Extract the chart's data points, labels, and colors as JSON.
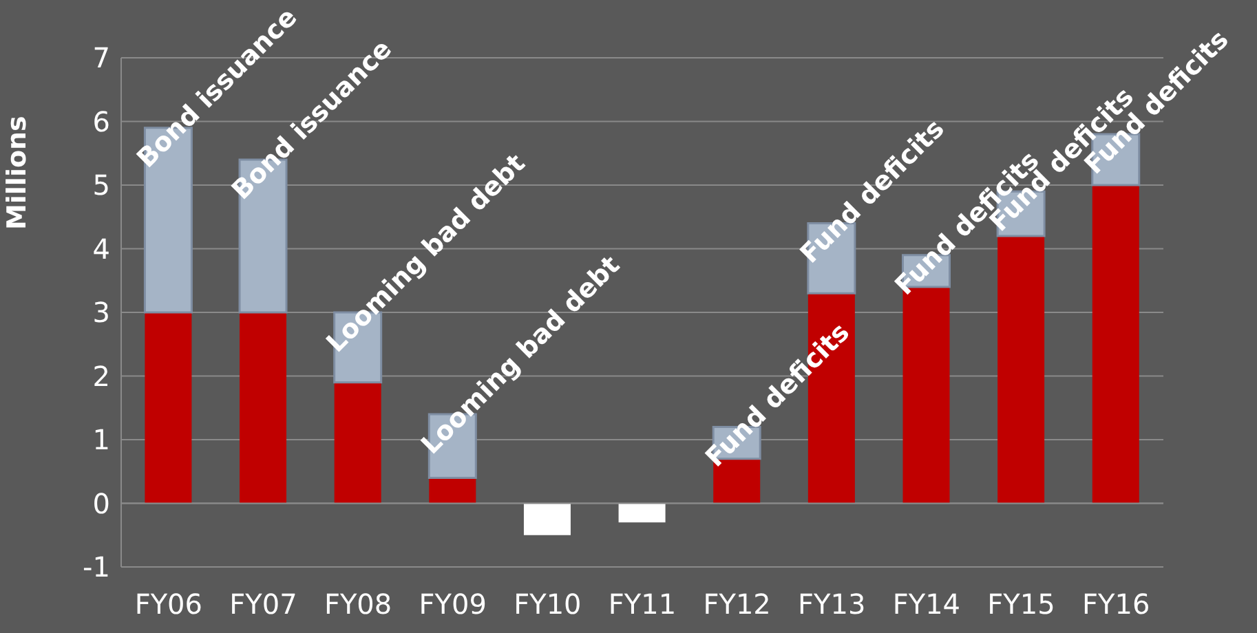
{
  "chart_data": {
    "type": "bar",
    "stacked": true,
    "ylabel": "Millions",
    "categories": [
      "FY06",
      "FY07",
      "FY08",
      "FY09",
      "FY10",
      "FY11",
      "FY12",
      "FY13",
      "FY14",
      "FY15",
      "FY16"
    ],
    "series": [
      {
        "color": "#c00000",
        "values": [
          3.0,
          3.0,
          1.9,
          0.4,
          null,
          null,
          0.7,
          3.3,
          3.4,
          4.2,
          5.0
        ]
      },
      {
        "color": "#a5b4c6",
        "values": [
          2.9,
          2.4,
          1.1,
          1.0,
          null,
          null,
          0.5,
          1.1,
          0.5,
          0.7,
          0.8
        ]
      },
      {
        "color": "#ffffff",
        "values": [
          null,
          null,
          null,
          null,
          -0.5,
          -0.3,
          null,
          null,
          null,
          null,
          null
        ]
      }
    ],
    "ylim": [
      -1,
      7
    ],
    "yticks": [
      -1,
      0,
      1,
      2,
      3,
      4,
      5,
      6,
      7
    ],
    "grid": "y",
    "legend": false,
    "annotations": [
      {
        "text": "Bond issuance",
        "x": "FY06",
        "y": 5.9
      },
      {
        "text": "Bond issuance",
        "x": "FY07",
        "y": 5.4
      },
      {
        "text": "Looming bad debt",
        "x": "FY08",
        "y": 3.0
      },
      {
        "text": "Looming bad debt",
        "x": "FY09",
        "y": 1.4
      },
      {
        "text": "Fund deficits",
        "x": "FY12",
        "y": 1.2
      },
      {
        "text": "Fund deficits",
        "x": "FY13",
        "y": 4.4
      },
      {
        "text": "Fund deficits",
        "x": "FY14",
        "y": 3.9
      },
      {
        "text": "Fund deficits",
        "x": "FY15",
        "y": 4.9
      },
      {
        "text": "Fund deficits",
        "x": "FY16",
        "y": 5.8
      }
    ]
  }
}
